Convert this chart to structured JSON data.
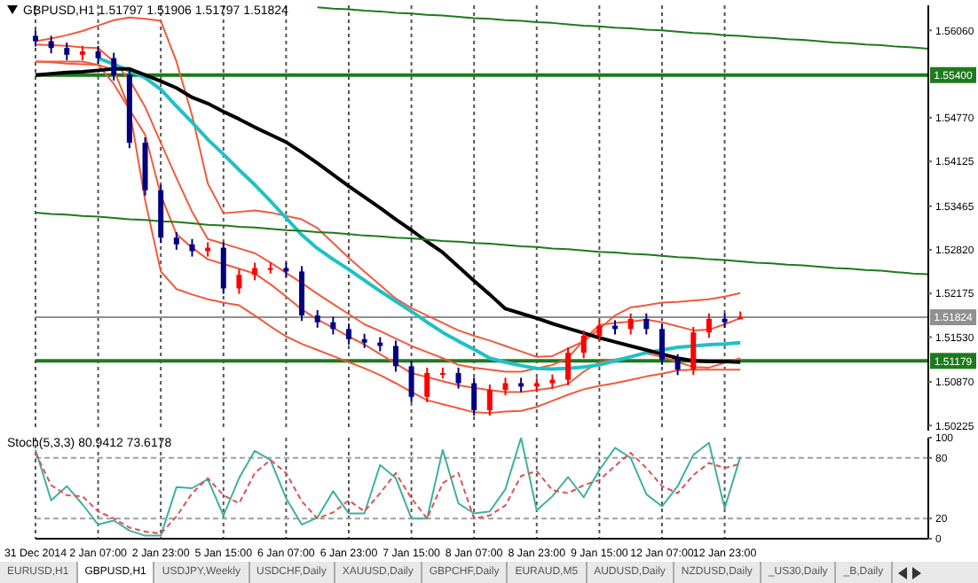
{
  "chart_data": [
    {
      "type": "candlestick",
      "title": "GBPUSD,H1 1.51797 1.51906 1.51797 1.51824",
      "categories": [
        null,
        null,
        null,
        null,
        null,
        null,
        null,
        null,
        null,
        null,
        null,
        null,
        null,
        null,
        null,
        null,
        null,
        null,
        null,
        null,
        null,
        null,
        null,
        null,
        null,
        null,
        null,
        null,
        null,
        null,
        null,
        null,
        null,
        null,
        null,
        null,
        null,
        null,
        null,
        null,
        null,
        null,
        null,
        null,
        null,
        null,
        null,
        null,
        null,
        null,
        null,
        null,
        null,
        null,
        null,
        null,
        null,
        null
      ],
      "ohlc": [
        [
          1.5598,
          1.5606,
          1.5582,
          1.559
        ],
        [
          1.559,
          1.5598,
          1.5572,
          1.558
        ],
        [
          1.558,
          1.5588,
          1.5562,
          1.557
        ],
        [
          1.557,
          1.5583,
          1.5562,
          1.5575
        ],
        [
          1.5575,
          1.5583,
          1.5557,
          1.5565
        ],
        [
          1.5565,
          1.5573,
          1.5532,
          1.554
        ],
        [
          1.554,
          1.5548,
          1.5432,
          1.544
        ],
        [
          1.544,
          1.5448,
          1.5362,
          1.537
        ],
        [
          1.537,
          1.5378,
          1.5292,
          1.53
        ],
        [
          1.53,
          1.5308,
          1.5282,
          1.529
        ],
        [
          1.529,
          1.5298,
          1.5272,
          1.528
        ],
        [
          1.528,
          1.5293,
          1.5272,
          1.5285
        ],
        [
          1.5285,
          1.5293,
          1.5217,
          1.5225
        ],
        [
          1.5225,
          1.5253,
          1.5217,
          1.5245
        ],
        [
          1.5245,
          1.5263,
          1.5237,
          1.5255
        ],
        [
          1.5255,
          1.5263,
          1.5247,
          1.5255
        ],
        [
          1.5255,
          1.5263,
          1.5242,
          1.525
        ],
        [
          1.525,
          1.5258,
          1.5177,
          1.5185
        ],
        [
          1.5185,
          1.5193,
          1.5167,
          1.5175
        ],
        [
          1.5175,
          1.5183,
          1.5157,
          1.5165
        ],
        [
          1.5165,
          1.5173,
          1.5142,
          1.515
        ],
        [
          1.515,
          1.5158,
          1.5137,
          1.5145
        ],
        [
          1.5145,
          1.5153,
          1.5132,
          1.514
        ],
        [
          1.514,
          1.5148,
          1.5102,
          1.511
        ],
        [
          1.511,
          1.5118,
          1.5057,
          1.5065
        ],
        [
          1.5065,
          1.5108,
          1.5057,
          1.51
        ],
        [
          1.51,
          1.5108,
          1.5092,
          1.51
        ],
        [
          1.51,
          1.5108,
          1.5077,
          1.5085
        ],
        [
          1.5085,
          1.5093,
          1.5037,
          1.5045
        ],
        [
          1.5045,
          1.5083,
          1.5037,
          1.5075
        ],
        [
          1.5075,
          1.5093,
          1.5067,
          1.5085
        ],
        [
          1.5085,
          1.5093,
          1.5072,
          1.508
        ],
        [
          1.508,
          1.5093,
          1.5072,
          1.5085
        ],
        [
          1.5085,
          1.5098,
          1.5077,
          1.509
        ],
        [
          1.509,
          1.5138,
          1.5082,
          1.513
        ],
        [
          1.513,
          1.5163,
          1.5122,
          1.5155
        ],
        [
          1.5155,
          1.5178,
          1.5147,
          1.517
        ],
        [
          1.517,
          1.5178,
          1.5157,
          1.5165
        ],
        [
          1.5165,
          1.5188,
          1.5157,
          1.518
        ],
        [
          1.518,
          1.5188,
          1.5157,
          1.5165
        ],
        [
          1.5165,
          1.5173,
          1.5112,
          1.512
        ],
        [
          1.512,
          1.5128,
          1.5097,
          1.5105
        ],
        [
          1.5105,
          1.5168,
          1.5097,
          1.516
        ],
        [
          1.516,
          1.5188,
          1.5152,
          1.518
        ],
        [
          1.518,
          1.5188,
          1.5167,
          1.5175
        ],
        [
          1.518,
          1.5191,
          1.518,
          1.5182
        ],
        null,
        null,
        null,
        null,
        null,
        null,
        null,
        null,
        null,
        null,
        null,
        null
      ],
      "colors": [
        "#000080",
        "#000080",
        "#000080",
        "#ff0000",
        "#000080",
        "#000080",
        "#000080",
        "#000080",
        "#000080",
        "#000080",
        "#000080",
        "#ff0000",
        "#000080",
        "#ff0000",
        "#ff0000",
        "#ff0000",
        "#000080",
        "#000080",
        "#000080",
        "#000080",
        "#000080",
        "#000080",
        "#000080",
        "#000080",
        "#000080",
        "#ff0000",
        "#ff0000",
        "#000080",
        "#000080",
        "#ff0000",
        "#ff0000",
        "#000080",
        "#ff0000",
        "#ff0000",
        "#ff0000",
        "#ff0000",
        "#ff0000",
        "#000080",
        "#ff0000",
        "#000080",
        "#000080",
        "#000080",
        "#ff0000",
        "#ff0000",
        "#000080",
        "#ff0000",
        null,
        null,
        null,
        null,
        null,
        null,
        null,
        null,
        null,
        null,
        null,
        null
      ],
      "series": [
        {
          "type": "line",
          "color": "#f05a3c",
          "values": [
            1.559,
            1.5594,
            1.5599,
            1.5605,
            1.5613,
            1.5621,
            1.5625,
            1.5623,
            1.562,
            1.556,
            1.548,
            1.538,
            1.5336,
            1.5338,
            1.534,
            1.5337,
            1.5332,
            1.5327,
            1.5314,
            1.5292,
            1.527,
            1.525,
            1.523,
            1.521,
            1.5196,
            1.5185,
            1.5174,
            1.5163,
            1.5155,
            1.5148,
            1.514,
            1.5132,
            1.5124,
            1.5125,
            1.5136,
            1.5147,
            1.5165,
            1.5185,
            1.5197,
            1.52,
            1.5204,
            1.5205,
            1.5207,
            1.5209,
            1.5213,
            1.5218,
            null,
            null,
            null,
            null,
            null,
            null,
            null,
            null,
            null,
            null,
            null,
            null
          ]
        },
        {
          "type": "line",
          "color": "#f05a3c",
          "values": [
            1.556,
            1.556,
            1.556,
            1.556,
            1.5555,
            1.5548,
            1.549,
            1.5355,
            1.525,
            1.5224,
            1.5216,
            1.5209,
            1.5204,
            1.52,
            1.5185,
            1.5169,
            1.5154,
            1.5143,
            1.5134,
            1.5125,
            1.5116,
            1.5107,
            1.5097,
            1.5085,
            1.5072,
            1.506,
            1.5054,
            1.5048,
            1.5042,
            1.5041,
            1.5043,
            1.5044,
            1.505,
            1.5059,
            1.5068,
            1.5076,
            1.5081,
            1.5085,
            1.509,
            1.5095,
            1.5099,
            1.5104,
            1.5105,
            1.5105,
            1.5105,
            1.5105,
            null,
            null,
            null,
            null,
            null,
            null,
            null,
            null,
            null,
            null,
            null,
            null
          ]
        },
        {
          "type": "line",
          "color": "#f05a3c",
          "values": [
            1.5585,
            1.5584,
            1.5583,
            1.5581,
            1.558,
            1.556,
            1.5533,
            1.5493,
            1.544,
            1.5388,
            1.5338,
            1.5298,
            1.5291,
            1.5284,
            1.5277,
            1.5263,
            1.5248,
            1.5233,
            1.5217,
            1.5202,
            1.5187,
            1.5172,
            1.5162,
            1.5151,
            1.514,
            1.5131,
            1.5122,
            1.5112,
            1.5108,
            1.5105,
            1.5102,
            1.5102,
            1.5107,
            1.5112,
            1.5122,
            1.5149,
            1.5171,
            1.5174,
            1.5176,
            1.5179,
            1.5175,
            1.5169,
            1.5163,
            1.5164,
            1.5172,
            1.5181,
            null,
            null,
            null,
            null,
            null,
            null,
            null,
            null,
            null,
            null,
            null,
            null
          ]
        },
        {
          "type": "line",
          "color": "#f05a3c",
          "values": [
            1.556,
            1.5559,
            1.5557,
            1.5556,
            1.5555,
            1.5527,
            1.5489,
            1.5452,
            1.5363,
            1.5305,
            1.5285,
            1.5268,
            1.5261,
            1.5254,
            1.5247,
            1.5231,
            1.5213,
            1.5194,
            1.5179,
            1.5167,
            1.5154,
            1.5142,
            1.5128,
            1.5114,
            1.51,
            1.5094,
            1.5088,
            1.5082,
            1.5078,
            1.5075,
            1.5072,
            1.5072,
            1.5075,
            1.5078,
            1.5084,
            1.5102,
            1.5116,
            1.512,
            1.5124,
            1.5129,
            1.5124,
            1.5116,
            1.5109,
            1.5108,
            1.5115,
            1.5122,
            null,
            null,
            null,
            null,
            null,
            null,
            null,
            null,
            null,
            null,
            null,
            null
          ]
        },
        {
          "type": "line",
          "color": "#20c0c8",
          "values": [
            null,
            null,
            null,
            null,
            1.5565,
            1.5556,
            1.5546,
            1.5536,
            1.5519,
            1.5494,
            1.547,
            1.5445,
            1.5423,
            1.54,
            1.5378,
            1.5354,
            1.5329,
            1.5304,
            1.5284,
            1.5268,
            1.5253,
            1.5237,
            1.5221,
            1.5206,
            1.5191,
            1.5175,
            1.516,
            1.5147,
            1.5135,
            1.5122,
            1.5116,
            1.5111,
            1.5107,
            1.5106,
            1.5107,
            1.5109,
            1.5112,
            1.5118,
            1.5124,
            1.513,
            1.5134,
            1.5138,
            1.514,
            1.5142,
            1.5143,
            1.5145,
            null,
            null,
            null,
            null,
            null,
            null,
            null,
            null,
            null,
            null,
            null,
            null
          ]
        },
        {
          "type": "line",
          "color": "#000000",
          "values": [
            1.554,
            1.5542,
            1.5544,
            1.5545,
            1.5547,
            1.5549,
            1.5549,
            1.554,
            1.5531,
            1.5521,
            1.5507,
            1.5498,
            1.5486,
            1.5475,
            1.5463,
            1.5452,
            1.5441,
            1.5426,
            1.541,
            1.5393,
            1.5376,
            1.536,
            1.5344,
            1.5327,
            1.5311,
            1.5294,
            1.5278,
            1.5257,
            1.5236,
            1.5216,
            1.5195,
            1.5188,
            1.5181,
            1.5173,
            1.5166,
            1.5159,
            1.5152,
            1.5146,
            1.514,
            1.5134,
            1.5128,
            1.5122,
            1.5118,
            1.5117,
            1.5117,
            1.5116,
            null,
            null,
            null,
            null,
            null,
            null,
            null,
            null,
            null,
            null,
            null,
            null
          ]
        },
        {
          "type": "line",
          "color": "#1e7a1e",
          "values": [
            null,
            null,
            null,
            null,
            null,
            null,
            null,
            null,
            null,
            null,
            null,
            null,
            null,
            null,
            null,
            null,
            null,
            null,
            1.564,
            1.5638,
            1.5637,
            1.5635,
            1.5634,
            1.5632,
            1.5631,
            1.5629,
            1.5628,
            1.5626,
            1.5624,
            1.5623,
            1.5621,
            1.562,
            1.5618,
            1.5617,
            1.5615,
            1.5613,
            1.5612,
            1.561,
            1.5609,
            1.5607,
            1.5606,
            1.5604,
            1.5602,
            1.5601,
            1.5599,
            1.5598,
            1.5596,
            1.5595,
            1.5593,
            1.5592,
            1.559,
            1.5588,
            1.5587,
            1.5585,
            1.5584,
            1.5582,
            1.5581,
            1.5579
          ]
        },
        {
          "type": "line",
          "color": "#1e7a1e",
          "values": [
            1.5337,
            1.5335,
            1.5334,
            1.5332,
            1.5331,
            1.5329,
            1.5327,
            1.5326,
            1.5324,
            1.5323,
            1.5321,
            1.5319,
            1.5318,
            1.5316,
            1.5315,
            1.5313,
            1.5311,
            1.531,
            1.5308,
            1.5307,
            1.5305,
            1.5303,
            1.5302,
            1.53,
            1.5299,
            1.5297,
            1.5295,
            1.5294,
            1.5292,
            1.5291,
            1.5289,
            1.5287,
            1.5286,
            1.5284,
            1.5283,
            1.5281,
            1.5279,
            1.5278,
            1.5276,
            1.5275,
            1.5273,
            1.5271,
            1.527,
            1.5268,
            1.5267,
            1.5265,
            1.5263,
            1.5262,
            1.526,
            1.5259,
            1.5257,
            1.5255,
            1.5254,
            1.5252,
            1.5251,
            1.5249,
            1.5247,
            1.5246
          ]
        }
      ],
      "ylim": [
        1.5015,
        1.5643
      ],
      "yticks": [
        {
          "value": 1.5606,
          "label": "1.56060"
        },
        {
          "value": 1.5477,
          "label": "1.54770"
        },
        {
          "value": 1.54125,
          "label": "1.54125"
        },
        {
          "value": 1.53465,
          "label": "1.53465"
        },
        {
          "value": 1.5282,
          "label": "1.52820"
        },
        {
          "value": 1.52175,
          "label": "1.52175"
        },
        {
          "value": 1.5153,
          "label": "1.51530"
        },
        {
          "value": 1.5087,
          "label": "1.50870"
        },
        {
          "value": 1.50225,
          "label": "1.50225"
        }
      ],
      "ref_lines": [
        {
          "axis": "y",
          "value": 1.554,
          "label": "1.55400",
          "color": "#1e7a1e"
        },
        {
          "axis": "y",
          "value": 1.51824,
          "label": "1.51824",
          "color": "#909090"
        },
        {
          "axis": "y",
          "value": 1.51179,
          "label": "1.51179",
          "color": "#1e7a1e"
        }
      ],
      "grid": "x",
      "marker": "none",
      "tick_labels": "y"
    },
    {
      "type": "line",
      "title": "Stoch(5,3,3) 80.9412 73.6178",
      "categories": [
        "31 Dec 2014",
        null,
        null,
        null,
        "2 Jan 07:00",
        null,
        null,
        null,
        "2 Jan 23:00",
        null,
        null,
        null,
        "5 Jan 15:00",
        null,
        null,
        null,
        "6 Jan 07:00",
        null,
        null,
        null,
        "6 Jan 23:00",
        null,
        null,
        null,
        "7 Jan 15:00",
        null,
        null,
        null,
        "8 Jan 07:00",
        null,
        null,
        null,
        "8 Jan 23:00",
        null,
        null,
        null,
        "9 Jan 15:00",
        null,
        null,
        null,
        "12 Jan 07:00",
        null,
        null,
        null,
        "12 Jan 23:00",
        null,
        null,
        null,
        null,
        null,
        null,
        null,
        null,
        null,
        null,
        null,
        null,
        null
      ],
      "series": [
        {
          "color": "#40b0a0",
          "line_style": "solid",
          "values": [
            88,
            38,
            52,
            34,
            14,
            18,
            8,
            3,
            3,
            51,
            50,
            59,
            23,
            60,
            87,
            78,
            40,
            14,
            21,
            47,
            25,
            25,
            73,
            60,
            20,
            20,
            88,
            35,
            25,
            27,
            49,
            100,
            28,
            42,
            61,
            41,
            68,
            90,
            80,
            44,
            32,
            52,
            83,
            95,
            30,
            81,
            null,
            null,
            null,
            null,
            null,
            null,
            null,
            null,
            null,
            null,
            null,
            null
          ]
        },
        {
          "color": "#e05050",
          "line_style": "dashed",
          "values": [
            85,
            53,
            43,
            42,
            27,
            20,
            11,
            7,
            5,
            22,
            45,
            60,
            43,
            35,
            65,
            78,
            65,
            37,
            20,
            26,
            38,
            27,
            45,
            65,
            40,
            20,
            55,
            65,
            20,
            23,
            33,
            62,
            67,
            48,
            45,
            53,
            58,
            72,
            85,
            70,
            52,
            45,
            63,
            75,
            70,
            74,
            null,
            null,
            null,
            null,
            null,
            null,
            null,
            null,
            null,
            null,
            null,
            null
          ]
        }
      ],
      "ylim": [
        0,
        100
      ],
      "yticks": [
        0,
        20,
        80,
        100
      ],
      "ref_lines": [
        {
          "axis": "y",
          "value": 20,
          "color": "#a0a0a0",
          "line_style": "dashed"
        },
        {
          "axis": "y",
          "value": 80,
          "color": "#a0a0a0",
          "line_style": "dashed"
        }
      ],
      "grid": "x",
      "marker": "none",
      "annotations": [
        "EURUSD,H1",
        "GBPUSD,H1",
        "USDJPY,Weekly",
        "USDCHF,Daily",
        "XAUUSD,Daily",
        "GBPCHF,Daily",
        "EURAUD,M5",
        "AUDUSD,Daily",
        "NZDUSD,Daily",
        "_US30,Daily",
        "_B,Daily"
      ]
    }
  ]
}
